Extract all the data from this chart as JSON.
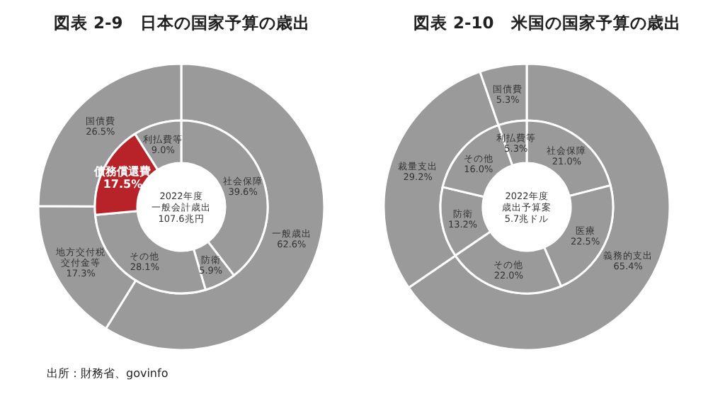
{
  "chart_data": [
    {
      "type": "donut",
      "title": "図表 2-9　日本の国家予算の歳出",
      "categories": [
        "一般歳出",
        "地方交付税交付金等",
        "国債費"
      ],
      "values": [
        62.6,
        17.3,
        26.5
      ],
      "colors": [
        "#9a9a9a",
        "#9a9a9a",
        "#9a9a9a"
      ],
      "value_labels": [
        "62.6%",
        "17.3%",
        "26.5%"
      ],
      "annotations": [
        "出所：財務省、govinfo"
      ]
    },
    {
      "type": "donut",
      "categories": [
        "社会保障",
        "防衛",
        "その他",
        "債務償還費",
        "利払費等"
      ],
      "values": [
        39.6,
        5.9,
        28.1,
        17.5,
        9.0
      ],
      "colors": [
        "#9a9a9a",
        "#9a9a9a",
        "#9a9a9a",
        "#b8232a",
        "#9a9a9a"
      ],
      "value_labels": [
        "39.6%",
        "5.9%",
        "28.1%",
        "17.5%",
        "9.0%"
      ],
      "annotations": [
        "2022年度",
        "一般会計歳出",
        "107.6兆円"
      ]
    },
    {
      "type": "donut",
      "title": "図表 2-10　米国の国家予算の歳出",
      "categories": [
        "義務的支出",
        "裁量支出",
        "国債費"
      ],
      "values": [
        65.4,
        29.2,
        5.3
      ],
      "colors": [
        "#9a9a9a",
        "#9a9a9a",
        "#9a9a9a"
      ],
      "value_labels": [
        "65.4%",
        "29.2%",
        "5.3%"
      ]
    },
    {
      "type": "donut",
      "categories": [
        "社会保障",
        "医療",
        "その他",
        "防衛",
        "その他",
        "利払費等"
      ],
      "values": [
        21.0,
        22.5,
        22.0,
        13.2,
        16.0,
        5.3
      ],
      "colors": [
        "#9a9a9a",
        "#9a9a9a",
        "#9a9a9a",
        "#9a9a9a",
        "#9a9a9a",
        "#9a9a9a"
      ],
      "value_labels": [
        "21.0%",
        "22.5%",
        "22.0%",
        "13.2%",
        "16.0%",
        "5.3%"
      ],
      "annotations": [
        "2022年度",
        "歳出予算案",
        "5.7兆ドル"
      ]
    }
  ]
}
